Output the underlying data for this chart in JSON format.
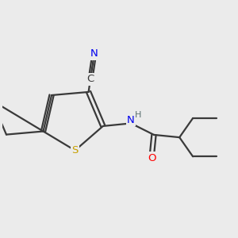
{
  "background_color": "#ebebeb",
  "atom_colors": {
    "C": "#3a3a3a",
    "N": "#0000ee",
    "S": "#c8a000",
    "O": "#ff0000",
    "H": "#5a7070"
  },
  "bond_color": "#3a3a3a",
  "figsize": [
    3.0,
    3.0
  ],
  "dpi": 100
}
